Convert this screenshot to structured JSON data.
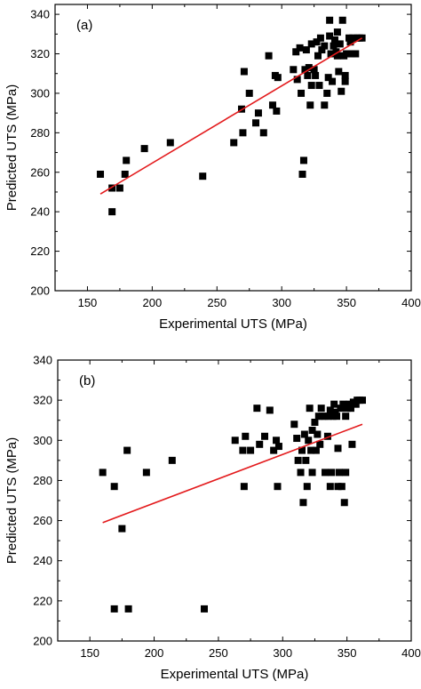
{
  "chart_data": [
    {
      "type": "scatter",
      "panel_label": "(a)",
      "xlabel": "Experimental UTS (MPa)",
      "ylabel": "Predicted UTS (MPa)",
      "xlim": [
        125,
        400
      ],
      "ylim": [
        200,
        345
      ],
      "xticks": [
        150,
        200,
        250,
        300,
        350,
        400
      ],
      "yticks": [
        200,
        220,
        240,
        260,
        280,
        300,
        320,
        340
      ],
      "xtick_labels": [
        "150",
        "200",
        "250",
        "300",
        "350",
        "400"
      ],
      "ytick_labels": [
        "200",
        "220",
        "240",
        "260",
        "280",
        "300",
        "320",
        "340"
      ],
      "marker_color": "#000000",
      "fit_color": "#e31a1c",
      "fit_line": {
        "x": [
          160,
          362
        ],
        "y": [
          249,
          328
        ]
      },
      "points": [
        {
          "x": 160,
          "y": 259
        },
        {
          "x": 169,
          "y": 252
        },
        {
          "x": 169,
          "y": 240
        },
        {
          "x": 175,
          "y": 252
        },
        {
          "x": 179,
          "y": 259
        },
        {
          "x": 180,
          "y": 266
        },
        {
          "x": 194,
          "y": 272
        },
        {
          "x": 214,
          "y": 275
        },
        {
          "x": 239,
          "y": 258
        },
        {
          "x": 263,
          "y": 275
        },
        {
          "x": 269,
          "y": 292
        },
        {
          "x": 270,
          "y": 280
        },
        {
          "x": 271,
          "y": 311
        },
        {
          "x": 275,
          "y": 300
        },
        {
          "x": 280,
          "y": 285
        },
        {
          "x": 282,
          "y": 290
        },
        {
          "x": 286,
          "y": 280
        },
        {
          "x": 290,
          "y": 319
        },
        {
          "x": 293,
          "y": 294
        },
        {
          "x": 295,
          "y": 309
        },
        {
          "x": 296,
          "y": 291
        },
        {
          "x": 297,
          "y": 308
        },
        {
          "x": 309,
          "y": 312
        },
        {
          "x": 311,
          "y": 321
        },
        {
          "x": 312,
          "y": 307
        },
        {
          "x": 314,
          "y": 323
        },
        {
          "x": 315,
          "y": 300
        },
        {
          "x": 316,
          "y": 259
        },
        {
          "x": 317,
          "y": 266
        },
        {
          "x": 318,
          "y": 312
        },
        {
          "x": 319,
          "y": 322
        },
        {
          "x": 320,
          "y": 309
        },
        {
          "x": 321,
          "y": 313
        },
        {
          "x": 322,
          "y": 294
        },
        {
          "x": 323,
          "y": 304
        },
        {
          "x": 323,
          "y": 325
        },
        {
          "x": 325,
          "y": 312
        },
        {
          "x": 326,
          "y": 309
        },
        {
          "x": 327,
          "y": 326
        },
        {
          "x": 328,
          "y": 319
        },
        {
          "x": 329,
          "y": 304
        },
        {
          "x": 330,
          "y": 328
        },
        {
          "x": 331,
          "y": 322
        },
        {
          "x": 333,
          "y": 324
        },
        {
          "x": 333,
          "y": 294
        },
        {
          "x": 335,
          "y": 300
        },
        {
          "x": 336,
          "y": 308
        },
        {
          "x": 337,
          "y": 337
        },
        {
          "x": 337,
          "y": 329
        },
        {
          "x": 338,
          "y": 320
        },
        {
          "x": 339,
          "y": 306
        },
        {
          "x": 340,
          "y": 324
        },
        {
          "x": 341,
          "y": 327
        },
        {
          "x": 342,
          "y": 321
        },
        {
          "x": 343,
          "y": 319
        },
        {
          "x": 343,
          "y": 331
        },
        {
          "x": 344,
          "y": 311
        },
        {
          "x": 345,
          "y": 325
        },
        {
          "x": 346,
          "y": 301
        },
        {
          "x": 347,
          "y": 337
        },
        {
          "x": 348,
          "y": 319
        },
        {
          "x": 349,
          "y": 309
        },
        {
          "x": 349,
          "y": 306
        },
        {
          "x": 350,
          "y": 320
        },
        {
          "x": 352,
          "y": 328
        },
        {
          "x": 353,
          "y": 326
        },
        {
          "x": 354,
          "y": 320
        },
        {
          "x": 355,
          "y": 328
        },
        {
          "x": 357,
          "y": 320
        },
        {
          "x": 358,
          "y": 328
        },
        {
          "x": 360,
          "y": 328
        },
        {
          "x": 362,
          "y": 328
        }
      ]
    },
    {
      "type": "scatter",
      "panel_label": "(b)",
      "xlabel": "Experimental UTS (MPa)",
      "ylabel": "Predicted UTS (MPa)",
      "xlim": [
        125,
        400
      ],
      "ylim": [
        200,
        340
      ],
      "xticks": [
        150,
        200,
        250,
        300,
        350,
        400
      ],
      "yticks": [
        200,
        220,
        240,
        260,
        280,
        300,
        320,
        340
      ],
      "xtick_labels": [
        "150",
        "200",
        "250",
        "300",
        "350",
        "400"
      ],
      "ytick_labels": [
        "200",
        "220",
        "240",
        "260",
        "280",
        "300",
        "320",
        "340"
      ],
      "marker_color": "#000000",
      "fit_color": "#e31a1c",
      "fit_line": {
        "x": [
          160,
          362
        ],
        "y": [
          259,
          308
        ]
      },
      "points": [
        {
          "x": 160,
          "y": 284
        },
        {
          "x": 169,
          "y": 277
        },
        {
          "x": 169,
          "y": 216
        },
        {
          "x": 175,
          "y": 256
        },
        {
          "x": 179,
          "y": 295
        },
        {
          "x": 180,
          "y": 216
        },
        {
          "x": 194,
          "y": 284
        },
        {
          "x": 214,
          "y": 290
        },
        {
          "x": 239,
          "y": 216
        },
        {
          "x": 263,
          "y": 300
        },
        {
          "x": 269,
          "y": 295
        },
        {
          "x": 270,
          "y": 277
        },
        {
          "x": 271,
          "y": 302
        },
        {
          "x": 275,
          "y": 295
        },
        {
          "x": 280,
          "y": 316
        },
        {
          "x": 282,
          "y": 298
        },
        {
          "x": 286,
          "y": 302
        },
        {
          "x": 290,
          "y": 315
        },
        {
          "x": 293,
          "y": 295
        },
        {
          "x": 295,
          "y": 300
        },
        {
          "x": 296,
          "y": 277
        },
        {
          "x": 297,
          "y": 297
        },
        {
          "x": 309,
          "y": 308
        },
        {
          "x": 311,
          "y": 301
        },
        {
          "x": 312,
          "y": 290
        },
        {
          "x": 314,
          "y": 284
        },
        {
          "x": 315,
          "y": 295
        },
        {
          "x": 316,
          "y": 269
        },
        {
          "x": 317,
          "y": 303
        },
        {
          "x": 318,
          "y": 290
        },
        {
          "x": 319,
          "y": 277
        },
        {
          "x": 320,
          "y": 300
        },
        {
          "x": 321,
          "y": 316
        },
        {
          "x": 322,
          "y": 295
        },
        {
          "x": 323,
          "y": 305
        },
        {
          "x": 323,
          "y": 284
        },
        {
          "x": 325,
          "y": 309
        },
        {
          "x": 326,
          "y": 295
        },
        {
          "x": 327,
          "y": 303
        },
        {
          "x": 328,
          "y": 312
        },
        {
          "x": 329,
          "y": 298
        },
        {
          "x": 330,
          "y": 316
        },
        {
          "x": 331,
          "y": 312
        },
        {
          "x": 333,
          "y": 284
        },
        {
          "x": 333,
          "y": 312
        },
        {
          "x": 335,
          "y": 302
        },
        {
          "x": 336,
          "y": 312
        },
        {
          "x": 337,
          "y": 277
        },
        {
          "x": 337,
          "y": 315
        },
        {
          "x": 338,
          "y": 284
        },
        {
          "x": 339,
          "y": 312
        },
        {
          "x": 340,
          "y": 318
        },
        {
          "x": 341,
          "y": 314
        },
        {
          "x": 342,
          "y": 312
        },
        {
          "x": 343,
          "y": 277
        },
        {
          "x": 343,
          "y": 296
        },
        {
          "x": 344,
          "y": 284
        },
        {
          "x": 345,
          "y": 316
        },
        {
          "x": 346,
          "y": 277
        },
        {
          "x": 347,
          "y": 318
        },
        {
          "x": 348,
          "y": 269
        },
        {
          "x": 349,
          "y": 312
        },
        {
          "x": 349,
          "y": 284
        },
        {
          "x": 350,
          "y": 316
        },
        {
          "x": 352,
          "y": 318
        },
        {
          "x": 353,
          "y": 316
        },
        {
          "x": 354,
          "y": 298
        },
        {
          "x": 355,
          "y": 319
        },
        {
          "x": 357,
          "y": 318
        },
        {
          "x": 358,
          "y": 320
        },
        {
          "x": 360,
          "y": 320
        },
        {
          "x": 362,
          "y": 320
        }
      ]
    }
  ]
}
